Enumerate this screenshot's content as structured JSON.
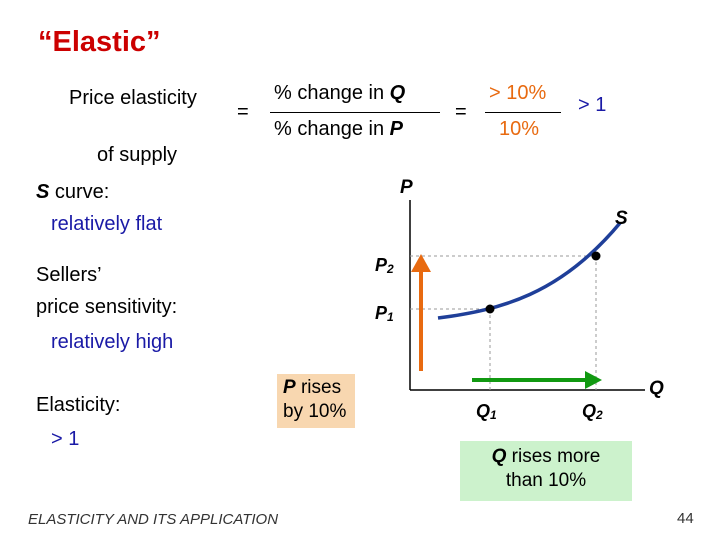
{
  "title": "“Elastic”",
  "formula": {
    "lhs_line1": "Price elasticity",
    "lhs_line2": "of supply",
    "eq1": "=",
    "num_prefix": "% change in ",
    "num_var": "Q",
    "den_prefix": "% change in ",
    "den_var": "P",
    "eq2": "=",
    "num_value": "> 10%",
    "den_value": "10%",
    "result": "> 1"
  },
  "left": {
    "curve_var": "S",
    "curve_label": " curve:",
    "curve_value": "relatively flat",
    "sens_line1": "Sellers’",
    "sens_line2": "price sensitivity:",
    "sens_value": "relatively high",
    "elast_label": "Elasticity:",
    "elast_value": "> 1"
  },
  "graph": {
    "y_axis": "P",
    "x_axis": "Q",
    "curve": "S",
    "p2": "P",
    "p2_sub": "2",
    "p1": "P",
    "p1_sub": "1",
    "q1": "Q",
    "q1_sub": "1",
    "q2": "Q",
    "q2_sub": "2"
  },
  "notes": {
    "p_var": "P",
    "p_text1": " rises",
    "p_text2": "by 10%",
    "q_var": "Q",
    "q_text1": " rises more",
    "q_text2": "than 10%"
  },
  "colors": {
    "title": "#cc0000",
    "blue": "#1a1aa6",
    "orange": "#e86a10",
    "green": "#119911",
    "curve": "#1f3f99"
  },
  "footer": "ELASTICITY AND ITS APPLICATION",
  "page_number": "44"
}
